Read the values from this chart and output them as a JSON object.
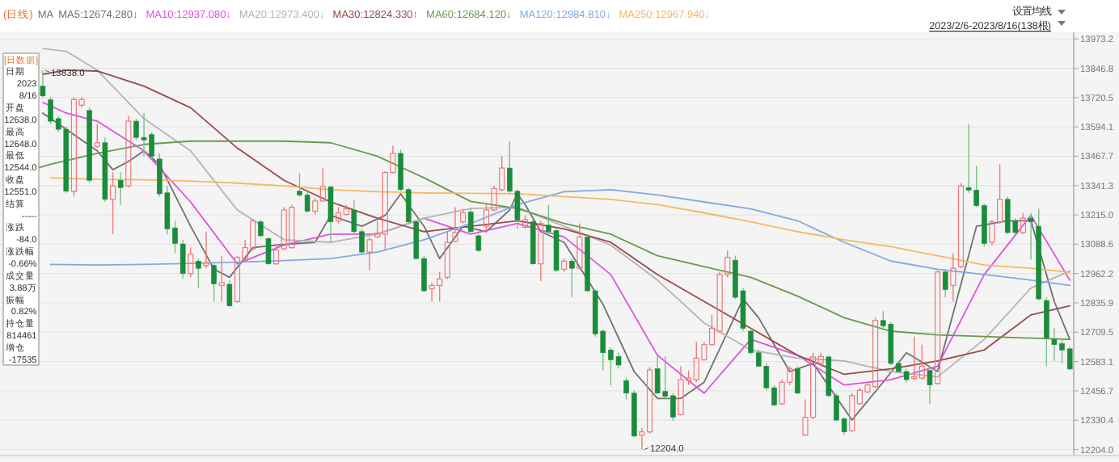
{
  "chart_data": {
    "type": "candlestick",
    "title": "(日线)",
    "legend_title": "MA",
    "legend": "top left",
    "grid": "y",
    "tick_labels": "y",
    "categories": [
      null,
      null,
      null,
      null,
      null,
      null,
      null,
      null,
      null,
      null,
      null,
      null,
      null,
      null,
      null,
      null,
      null,
      null,
      null,
      null,
      null,
      null,
      null,
      null,
      null,
      null,
      null,
      null,
      null,
      null,
      null,
      null,
      null,
      null,
      null,
      null,
      null,
      null,
      null,
      null,
      null,
      null,
      null,
      null,
      null,
      null,
      null,
      null,
      null,
      null,
      null,
      null,
      null,
      null,
      null,
      null,
      null,
      null,
      null,
      null,
      null,
      null,
      null,
      null,
      null,
      null,
      null,
      null,
      null,
      null,
      null,
      null,
      null,
      null,
      null,
      null,
      null,
      null,
      null,
      null,
      null,
      null,
      null,
      null,
      null,
      null,
      null,
      null,
      null,
      null,
      null,
      null,
      null,
      null,
      null,
      null,
      null,
      null,
      null,
      null,
      null,
      null,
      null,
      null,
      null,
      null,
      null,
      null,
      null,
      null,
      null,
      null,
      null,
      null,
      null,
      null,
      null,
      null,
      null,
      null,
      null,
      null,
      null,
      null,
      null,
      null,
      null,
      null,
      null,
      null,
      null,
      null,
      null,
      null,
      null,
      null,
      null,
      null
    ],
    "ohlc": [
      null,
      null,
      null,
      null,
      null,
      [
        13770,
        13838,
        13719,
        13728
      ],
      [
        13712,
        13723,
        13607,
        13619
      ],
      [
        13630,
        13642,
        13572,
        13584
      ],
      [
        13584,
        13596,
        13310,
        13317
      ],
      [
        13317,
        13723,
        13294,
        13712
      ],
      [
        13688,
        13723,
        13677,
        13712
      ],
      [
        13665,
        13677,
        13352,
        13364
      ],
      [
        13510,
        13607,
        13503,
        13526
      ],
      [
        13526,
        13549,
        13271,
        13282
      ],
      [
        13282,
        13398,
        13132,
        13340
      ],
      [
        13364,
        13398,
        13259,
        13333
      ],
      [
        13340,
        13642,
        13333,
        13619
      ],
      [
        13619,
        13630,
        13538,
        13549
      ],
      [
        13549,
        13654,
        13468,
        13538
      ],
      [
        13561,
        13572,
        13456,
        13468
      ],
      [
        13456,
        13480,
        13294,
        13306
      ],
      [
        13310,
        13340,
        13132,
        13155
      ],
      [
        13159,
        13190,
        13050,
        13092
      ],
      [
        13090,
        13108,
        12939,
        12962
      ],
      [
        12962,
        13074,
        12946,
        13046
      ],
      [
        13016,
        13027,
        12900,
        12985
      ],
      [
        12997,
        13143,
        12985,
        13009
      ],
      [
        12997,
        13004,
        12842,
        12918
      ],
      [
        12911,
        13039,
        12842,
        12923
      ],
      [
        12916,
        12934,
        12818,
        12823
      ],
      [
        12842,
        13039,
        12837,
        13032
      ],
      [
        13027,
        13108,
        13016,
        13074
      ],
      [
        13069,
        13194,
        13062,
        13190
      ],
      [
        13185,
        13194,
        13120,
        13125
      ],
      [
        13113,
        13120,
        13000,
        13004
      ],
      [
        13004,
        13085,
        13000,
        13064
      ],
      [
        13069,
        13248,
        13062,
        13236
      ],
      [
        13074,
        13259,
        13069,
        13248
      ],
      [
        13317,
        13394,
        13294,
        13301
      ],
      [
        13301,
        13317,
        13224,
        13231
      ],
      [
        13231,
        13287,
        13217,
        13275
      ],
      [
        13275,
        13417,
        13271,
        13336
      ],
      [
        13336,
        13340,
        13097,
        13185
      ],
      [
        13190,
        13248,
        13178,
        13224
      ],
      [
        13217,
        13259,
        13213,
        13241
      ],
      [
        13236,
        13278,
        13132,
        13143
      ],
      [
        13143,
        13155,
        13046,
        13055
      ],
      [
        13055,
        13120,
        12976,
        13108
      ],
      [
        13120,
        13190,
        13115,
        13136
      ],
      [
        13132,
        13403,
        13062,
        13398
      ],
      [
        13398,
        13514,
        13394,
        13480
      ],
      [
        13480,
        13496,
        13317,
        13324
      ],
      [
        13324,
        13333,
        13178,
        13185
      ],
      [
        13185,
        13194,
        13023,
        13027
      ],
      [
        13027,
        13039,
        12883,
        12888
      ],
      [
        12897,
        12923,
        12842,
        12911
      ],
      [
        12911,
        12969,
        12842,
        12939
      ],
      [
        12946,
        13143,
        12939,
        13097
      ],
      [
        13101,
        13248,
        13097,
        13139
      ],
      [
        13185,
        13241,
        13178,
        13224
      ],
      [
        13227,
        13241,
        13132,
        13143
      ],
      [
        13125,
        13132,
        13055,
        13062
      ],
      [
        13166,
        13259,
        13143,
        13236
      ],
      [
        13236,
        13340,
        13231,
        13329
      ],
      [
        13324,
        13468,
        13317,
        13417
      ],
      [
        13417,
        13533,
        13310,
        13317
      ],
      [
        13317,
        13324,
        13155,
        13194
      ],
      [
        13162,
        13213,
        13155,
        13194
      ],
      [
        13185,
        13194,
        13000,
        13004
      ],
      [
        13004,
        13190,
        12930,
        13178
      ],
      [
        13171,
        13259,
        13132,
        13143
      ],
      [
        13148,
        13155,
        12969,
        12976
      ],
      [
        12981,
        13027,
        12969,
        13016
      ],
      [
        13016,
        13027,
        12860,
        12985
      ],
      [
        12985,
        13178,
        12981,
        13120
      ],
      [
        13120,
        13132,
        12883,
        12888
      ],
      [
        12888,
        12893,
        12691,
        12702
      ],
      [
        12714,
        12721,
        12545,
        12621
      ],
      [
        12633,
        12644,
        12482,
        12591
      ],
      [
        12605,
        12621,
        12552,
        12568
      ],
      [
        12501,
        12512,
        12419,
        12447
      ],
      [
        12447,
        12459,
        12257,
        12262
      ],
      [
        12266,
        12296,
        12204,
        12280
      ],
      [
        12280,
        12559,
        12273,
        12547
      ],
      [
        12552,
        12610,
        12443,
        12447
      ],
      [
        12454,
        12605,
        12424,
        12433
      ],
      [
        12436,
        12447,
        12327,
        12343
      ],
      [
        12354,
        12563,
        12350,
        12505
      ],
      [
        12501,
        12545,
        12482,
        12512
      ],
      [
        12505,
        12668,
        12494,
        12598
      ],
      [
        12591,
        12668,
        12586,
        12656
      ],
      [
        12656,
        12784,
        12651,
        12726
      ],
      [
        12714,
        12969,
        12707,
        12958
      ],
      [
        12958,
        13062,
        12946,
        13032
      ],
      [
        13020,
        13039,
        12853,
        12860
      ],
      [
        12888,
        12900,
        12714,
        12726
      ],
      [
        12714,
        12726,
        12614,
        12621
      ],
      [
        12621,
        12633,
        12559,
        12563
      ],
      [
        12563,
        12575,
        12459,
        12470
      ],
      [
        12470,
        12482,
        12389,
        12396
      ],
      [
        12401,
        12505,
        12396,
        12494
      ],
      [
        12494,
        12563,
        12482,
        12552
      ],
      [
        12552,
        12563,
        12443,
        12447
      ],
      [
        12266,
        12419,
        12262,
        12343
      ],
      [
        12343,
        12621,
        12336,
        12603
      ],
      [
        12575,
        12621,
        12563,
        12605
      ],
      [
        12603,
        12610,
        12429,
        12436
      ],
      [
        12436,
        12447,
        12327,
        12331
      ],
      [
        12336,
        12343,
        12266,
        12280
      ],
      [
        12285,
        12447,
        12280,
        12436
      ],
      [
        12401,
        12470,
        12396,
        12459
      ],
      [
        12452,
        12494,
        12447,
        12482
      ],
      [
        12475,
        12772,
        12470,
        12760
      ],
      [
        12760,
        12800,
        12726,
        12737
      ],
      [
        12744,
        12753,
        12568,
        12575
      ],
      [
        12575,
        12586,
        12535,
        12540
      ],
      [
        12540,
        12552,
        12494,
        12505
      ],
      [
        12510,
        12691,
        12505,
        12517
      ],
      [
        12512,
        12656,
        12505,
        12563
      ],
      [
        12545,
        12563,
        12401,
        12482
      ],
      [
        12489,
        12976,
        12482,
        12969
      ],
      [
        12969,
        12981,
        12860,
        12893
      ],
      [
        12911,
        13050,
        12842,
        12985
      ],
      [
        12992,
        13352,
        12985,
        13340
      ],
      [
        13333,
        13607,
        13310,
        13322
      ],
      [
        13322,
        13426,
        13248,
        13255
      ],
      [
        13255,
        13264,
        13078,
        13092
      ],
      [
        13097,
        13194,
        13085,
        13185
      ],
      [
        13185,
        13433,
        13178,
        13282
      ],
      [
        13282,
        13294,
        13132,
        13139
      ],
      [
        13190,
        13201,
        13132,
        13139
      ],
      [
        13139,
        13224,
        13132,
        13201
      ],
      [
        13201,
        13224,
        13023,
        13185
      ],
      [
        13166,
        13241,
        12846,
        12853
      ],
      [
        12846,
        12860,
        12563,
        12684
      ],
      [
        12679,
        12726,
        12586,
        12656
      ],
      [
        12661,
        12679,
        12575,
        12633
      ],
      [
        12638,
        12648,
        12544,
        12551
      ]
    ],
    "series": [
      {
        "name": "MA5:12674.280↓",
        "type": "line",
        "color": "#707070",
        "values": [
          null,
          null,
          null,
          null,
          null,
          13654,
          null,
          null,
          13584,
          null,
          null,
          null,
          13491,
          null,
          13410,
          null,
          13445,
          null,
          13491,
          null,
          13433,
          null,
          null,
          null,
          13166,
          null,
          null,
          12981,
          null,
          12946,
          null,
          null,
          13074,
          null,
          null,
          13085,
          null,
          null,
          null,
          null,
          13097,
          null,
          13213,
          null,
          null,
          null,
          13166,
          null,
          null,
          13213,
          null,
          13306,
          null,
          null,
          13166,
          null,
          13027,
          null,
          null,
          13166,
          null,
          null,
          13143,
          null,
          null,
          13236,
          13306,
          13259,
          null,
          13143,
          null,
          null,
          13097,
          null,
          null,
          null,
          null,
          12830,
          null,
          null,
          null,
          12540,
          null,
          null,
          12424,
          null,
          null,
          12424,
          null,
          null,
          12494,
          null,
          null,
          null,
          null,
          12853,
          null,
          12772,
          null,
          null,
          null,
          12540,
          null,
          null,
          12575,
          null,
          null,
          null,
          null,
          12331,
          null,
          null,
          null,
          12494,
          null,
          null,
          12621,
          null,
          null,
          null,
          12540,
          null,
          null,
          null,
          null,
          13166,
          null,
          null,
          null,
          13190,
          null,
          null,
          13190,
          null,
          null,
          12842,
          null,
          12679
        ]
      },
      {
        "name": "MA10:12937.080↓",
        "type": "line",
        "color": "#e050e0",
        "values": [
          null,
          null,
          null,
          null,
          null,
          13700,
          null,
          null,
          13654,
          null,
          null,
          null,
          13619,
          null,
          null,
          null,
          null,
          null,
          13491,
          null,
          null,
          null,
          null,
          null,
          13271,
          null,
          null,
          null,
          null,
          null,
          13004,
          null,
          null,
          null,
          null,
          null,
          13085,
          null,
          null,
          null,
          null,
          null,
          13132,
          null,
          null,
          null,
          null,
          null,
          13132,
          null,
          null,
          null,
          null,
          null,
          13201,
          null,
          null,
          null,
          null,
          null,
          13132,
          null,
          null,
          null,
          null,
          null,
          13178,
          null,
          null,
          null,
          null,
          null,
          13120,
          null,
          null,
          null,
          null,
          null,
          12958,
          null,
          null,
          null,
          null,
          null,
          12610,
          null,
          null,
          null,
          null,
          null,
          12447,
          null,
          null,
          null,
          null,
          null,
          12679,
          null,
          null,
          null,
          null,
          null,
          12610,
          null,
          null,
          null,
          null,
          null,
          12482,
          null,
          null,
          null,
          null,
          null,
          12505,
          null,
          null,
          null,
          null,
          null,
          12563,
          null,
          null,
          null,
          null,
          null,
          12958,
          null,
          null,
          null,
          null,
          null,
          13213,
          null,
          null,
          null,
          null,
          12934
        ]
      },
      {
        "name": "MA20:12973.400↓",
        "type": "line",
        "color": "#b4b4b4",
        "values": [
          null,
          null,
          null,
          null,
          null,
          13932,
          null,
          null,
          13920,
          null,
          null,
          null,
          13839,
          null,
          null,
          null,
          null,
          null,
          13630,
          null,
          null,
          null,
          null,
          null,
          13491,
          null,
          null,
          null,
          null,
          null,
          13236,
          null,
          null,
          null,
          null,
          null,
          13108,
          null,
          null,
          null,
          null,
          null,
          13097,
          null,
          null,
          null,
          null,
          null,
          13132,
          null,
          null,
          null,
          null,
          null,
          13201,
          null,
          null,
          null,
          null,
          null,
          13243,
          null,
          null,
          null,
          null,
          null,
          13248,
          null,
          null,
          null,
          null,
          null,
          13166,
          null,
          null,
          null,
          null,
          null,
          13085,
          null,
          null,
          null,
          null,
          null,
          12934,
          null,
          null,
          null,
          null,
          null,
          12749,
          null,
          null,
          null,
          null,
          null,
          12633,
          null,
          null,
          null,
          null,
          null,
          12598,
          null,
          null,
          null,
          null,
          null,
          12586,
          null,
          null,
          null,
          null,
          null,
          12540,
          null,
          null,
          null,
          null,
          null,
          12517,
          null,
          null,
          null,
          null,
          null,
          12679,
          null,
          null,
          null,
          null,
          null,
          12900,
          null,
          null,
          null,
          null,
          12973
        ]
      },
      {
        "name": "MA30:12824.330↑",
        "type": "line",
        "color": "#9a4a4a",
        "values": [
          null,
          null,
          null,
          null,
          null,
          13821,
          null,
          null,
          13839,
          null,
          null,
          null,
          13835,
          null,
          null,
          null,
          null,
          null,
          13770,
          null,
          null,
          null,
          null,
          null,
          13677,
          null,
          null,
          null,
          null,
          null,
          13503,
          null,
          null,
          null,
          null,
          null,
          13364,
          null,
          null,
          null,
          null,
          null,
          13271,
          null,
          null,
          null,
          null,
          null,
          13201,
          null,
          null,
          null,
          null,
          null,
          13143,
          null,
          null,
          null,
          null,
          null,
          13166,
          null,
          null,
          null,
          null,
          null,
          13190,
          null,
          null,
          null,
          null,
          null,
          13155,
          null,
          null,
          null,
          null,
          null,
          13097,
          null,
          null,
          null,
          null,
          null,
          12958,
          null,
          null,
          null,
          null,
          null,
          12842,
          null,
          null,
          null,
          null,
          null,
          12726,
          null,
          null,
          null,
          null,
          null,
          12610,
          null,
          null,
          null,
          null,
          null,
          12528,
          null,
          null,
          null,
          null,
          null,
          12552,
          null,
          null,
          null,
          null,
          null,
          12586,
          null,
          null,
          null,
          null,
          null,
          12633,
          null,
          null,
          null,
          null,
          null,
          12784,
          null,
          null,
          null,
          null,
          12823
        ]
      },
      {
        "name": "MA60:12684.120↓",
        "type": "line",
        "color": "#6a9a4a",
        "values": [
          13375,
          null,
          null,
          null,
          null,
          null,
          13433,
          null,
          null,
          null,
          null,
          null,
          13480,
          null,
          null,
          null,
          null,
          null,
          13519,
          null,
          null,
          null,
          null,
          null,
          13533,
          null,
          null,
          null,
          null,
          null,
          13533,
          null,
          null,
          null,
          null,
          null,
          13533,
          null,
          null,
          null,
          null,
          null,
          13526,
          null,
          null,
          null,
          null,
          null,
          13468,
          null,
          null,
          null,
          null,
          null,
          13375,
          null,
          null,
          null,
          null,
          null,
          13273,
          null,
          null,
          null,
          null,
          null,
          13243,
          null,
          null,
          null,
          null,
          null,
          13178,
          null,
          null,
          null,
          null,
          null,
          13132,
          null,
          null,
          null,
          null,
          null,
          13039,
          null,
          null,
          null,
          null,
          null,
          12992,
          null,
          null,
          null,
          null,
          null,
          12946,
          null,
          null,
          null,
          null,
          null,
          12865,
          null,
          null,
          null,
          null,
          null,
          12772,
          null,
          null,
          null,
          null,
          null,
          12714,
          null,
          null,
          null,
          null,
          null,
          12698,
          null,
          null,
          null,
          null,
          null,
          12691,
          null,
          null,
          null,
          null,
          null,
          12684,
          null,
          null,
          null,
          null,
          12679
        ]
      },
      {
        "name": "MA120:12984.810↓",
        "type": "line",
        "color": "#80aae0",
        "values": [
          null,
          null,
          null,
          null,
          null,
          null,
          13002,
          null,
          null,
          null,
          null,
          null,
          12999,
          null,
          null,
          null,
          null,
          null,
          13002,
          null,
          null,
          null,
          null,
          null,
          13006,
          null,
          null,
          null,
          null,
          null,
          13011,
          null,
          null,
          null,
          null,
          null,
          13018,
          null,
          null,
          null,
          null,
          null,
          13027,
          null,
          null,
          null,
          null,
          null,
          13055,
          null,
          null,
          null,
          null,
          null,
          13108,
          null,
          null,
          null,
          null,
          null,
          13178,
          null,
          null,
          null,
          null,
          null,
          13259,
          null,
          null,
          null,
          null,
          null,
          13315,
          null,
          null,
          null,
          null,
          null,
          13324,
          null,
          null,
          null,
          null,
          null,
          13301,
          null,
          null,
          null,
          null,
          null,
          13271,
          null,
          null,
          null,
          null,
          null,
          13241,
          null,
          null,
          null,
          null,
          null,
          13190,
          null,
          null,
          null,
          null,
          null,
          13097,
          null,
          null,
          null,
          null,
          null,
          13016,
          null,
          null,
          null,
          null,
          null,
          12981,
          null,
          null,
          null,
          null,
          null,
          12958,
          null,
          null,
          null,
          null,
          null,
          12934,
          null,
          null,
          null,
          null,
          12911
        ]
      },
      {
        "name": "MA250:12967.940↓",
        "type": "line",
        "color": "#f4b860",
        "values": [
          null,
          null,
          null,
          null,
          null,
          null,
          13375,
          null,
          null,
          null,
          null,
          null,
          13368,
          null,
          null,
          null,
          null,
          null,
          13366,
          null,
          null,
          null,
          null,
          null,
          13361,
          null,
          null,
          null,
          null,
          null,
          13352,
          null,
          null,
          null,
          null,
          null,
          13340,
          null,
          null,
          null,
          null,
          null,
          13324,
          null,
          null,
          null,
          null,
          null,
          13315,
          null,
          null,
          null,
          null,
          null,
          13310,
          null,
          null,
          null,
          null,
          null,
          13308,
          null,
          null,
          null,
          null,
          null,
          13306,
          null,
          null,
          null,
          null,
          null,
          13294,
          null,
          null,
          null,
          null,
          null,
          13282,
          null,
          null,
          null,
          null,
          null,
          13259,
          null,
          null,
          null,
          null,
          null,
          13224,
          null,
          null,
          null,
          null,
          null,
          13185,
          null,
          null,
          null,
          null,
          null,
          13143,
          null,
          null,
          null,
          null,
          null,
          13108,
          null,
          null,
          null,
          null,
          null,
          13078,
          null,
          null,
          null,
          null,
          null,
          13039,
          null,
          null,
          null,
          null,
          null,
          12999,
          null,
          null,
          null,
          null,
          null,
          12985,
          null,
          null,
          null,
          null,
          12968
        ]
      }
    ],
    "ylim": [
      12178,
      14002
    ],
    "yticks": [
      {
        "value": 13973.2,
        "label": "13973.2"
      },
      {
        "value": 13846.8,
        "label": "13846.8"
      },
      {
        "value": 13720.5,
        "label": "13720.5"
      },
      {
        "value": 13594.1,
        "label": "13594.1"
      },
      {
        "value": 13467.7,
        "label": "13467.7"
      },
      {
        "value": 13341.3,
        "label": "13341.3"
      },
      {
        "value": 13215,
        "label": "13215.0"
      },
      {
        "value": 13088.6,
        "label": "13088.6"
      },
      {
        "value": 12962.2,
        "label": "12962.2"
      },
      {
        "value": 12835.9,
        "label": "12835.9"
      },
      {
        "value": 12709.5,
        "label": "12709.5"
      },
      {
        "value": 12583.1,
        "label": "12583.1"
      },
      {
        "value": 12456.7,
        "label": "12456.7"
      },
      {
        "value": 12330.4,
        "label": "12330.4"
      },
      {
        "value": 12204,
        "label": "12204.0"
      }
    ],
    "annotations": [
      "设置均线",
      "2023/2/6-2023/8/16(138根)",
      "[日数据]",
      "日期",
      "2023",
      "8/16",
      "开盘",
      "12638.0",
      "最高",
      "12648.0",
      "最低",
      "12544.0",
      "收盘",
      "12551.0",
      "结算",
      "-----",
      "涨跌",
      "-84.0",
      "涨跌幅",
      "-0.66%",
      "成交量",
      "3.88万",
      "振幅",
      "0.82%",
      "持仓量",
      "814461",
      "增仓",
      "-17535",
      "13838.0",
      "12204.0"
    ]
  }
}
